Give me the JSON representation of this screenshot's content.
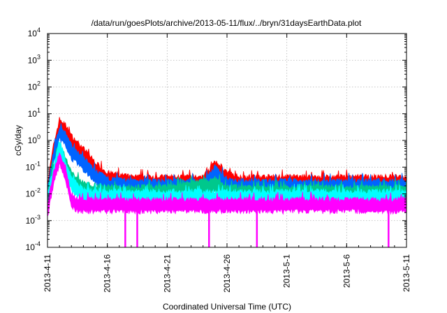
{
  "chart_data": {
    "type": "line",
    "title": "/data/run/goesPlots/archive/2013-05-11/flux/../bryn/31daysEarthData.plot",
    "xlabel": "Coordinated Universal Time (UTC)",
    "ylabel": "cGy/day",
    "y_scale": "log",
    "ylim": [
      0.0001,
      10000
    ],
    "xlim": [
      "2013-04-11",
      "2013-05-11"
    ],
    "x_ticks": [
      "2013-4-11",
      "2013-4-16",
      "2013-4-21",
      "2013-4-26",
      "2013-5-1",
      "2013-5-6",
      "2013-5-11"
    ],
    "y_ticks": [
      {
        "base": "10",
        "exp": "-4"
      },
      {
        "base": "10",
        "exp": "-3"
      },
      {
        "base": "10",
        "exp": "-2"
      },
      {
        "base": "10",
        "exp": "-1"
      },
      {
        "base": "10",
        "exp": "0"
      },
      {
        "base": "10",
        "exp": "1"
      },
      {
        "base": "10",
        "exp": "2"
      },
      {
        "base": "10",
        "exp": "3"
      },
      {
        "base": "10",
        "exp": "4"
      }
    ],
    "grid": true,
    "legend": "none",
    "series": [
      {
        "color": "#ff0000",
        "x": [
          "2013-04-11",
          "2013-04-11T12:00",
          "2013-04-12",
          "2013-04-12T12:00",
          "2013-04-13",
          "2013-04-14",
          "2013-04-15",
          "2013-04-16",
          "2013-04-18",
          "2013-04-21",
          "2013-04-24",
          "2013-04-25",
          "2013-04-25T12:00",
          "2013-04-26",
          "2013-04-27",
          "2013-05-01",
          "2013-05-06",
          "2013-05-11"
        ],
        "y": [
          0.02,
          0.5,
          5,
          3,
          1.2,
          0.4,
          0.12,
          0.05,
          0.035,
          0.035,
          0.035,
          0.12,
          0.09,
          0.05,
          0.035,
          0.035,
          0.035,
          0.035
        ]
      },
      {
        "color": "#0064ff",
        "x": [
          "2013-04-11",
          "2013-04-11T12:00",
          "2013-04-12",
          "2013-04-12T12:00",
          "2013-04-13",
          "2013-04-14",
          "2013-04-15",
          "2013-04-16",
          "2013-04-18",
          "2013-04-21",
          "2013-04-24",
          "2013-04-25",
          "2013-04-25T12:00",
          "2013-04-26",
          "2013-04-27",
          "2013-05-01",
          "2013-05-06",
          "2013-05-11"
        ],
        "y": [
          0.015,
          0.3,
          2.5,
          1.5,
          0.5,
          0.18,
          0.06,
          0.03,
          0.025,
          0.025,
          0.025,
          0.08,
          0.05,
          0.03,
          0.025,
          0.025,
          0.025,
          0.025
        ]
      },
      {
        "color": "#00c88c",
        "x": [
          "2013-04-11",
          "2013-04-11T12:00",
          "2013-04-12",
          "2013-04-12T12:00",
          "2013-04-13",
          "2013-04-14",
          "2013-04-16",
          "2013-04-21",
          "2013-04-25",
          "2013-04-26",
          "2013-05-01",
          "2013-05-11"
        ],
        "y": [
          0.01,
          0.1,
          0.6,
          0.2,
          0.05,
          0.02,
          0.015,
          0.015,
          0.03,
          0.015,
          0.015,
          0.015
        ]
      },
      {
        "color": "#00ffff",
        "x": [
          "2013-04-11",
          "2013-04-11T12:00",
          "2013-04-12",
          "2013-04-12T12:00",
          "2013-04-13",
          "2013-04-14",
          "2013-04-16",
          "2013-04-21",
          "2013-05-01",
          "2013-05-11"
        ],
        "y": [
          0.008,
          0.08,
          0.8,
          0.15,
          0.03,
          0.012,
          0.01,
          0.01,
          0.01,
          0.01
        ]
      },
      {
        "color": "#ff00ff",
        "x": [
          "2013-04-11",
          "2013-04-11T12:00",
          "2013-04-12",
          "2013-04-12T12:00",
          "2013-04-13",
          "2013-04-13T12:00",
          "2013-04-16",
          "2013-04-21",
          "2013-05-01",
          "2013-05-11"
        ],
        "y": [
          0.003,
          0.05,
          0.3,
          0.08,
          0.008,
          0.005,
          0.005,
          0.005,
          0.005,
          0.005
        ]
      }
    ],
    "dropouts": [
      {
        "x": "2013-04-17T12:00",
        "y": 0.0001
      },
      {
        "x": "2013-04-18T12:00",
        "y": 0.0001
      },
      {
        "x": "2013-04-24T12:00",
        "y": 0.0001
      },
      {
        "x": "2013-04-28T12:00",
        "y": 0.0001
      },
      {
        "x": "2013-05-09T12:00",
        "y": 0.0001
      }
    ]
  }
}
